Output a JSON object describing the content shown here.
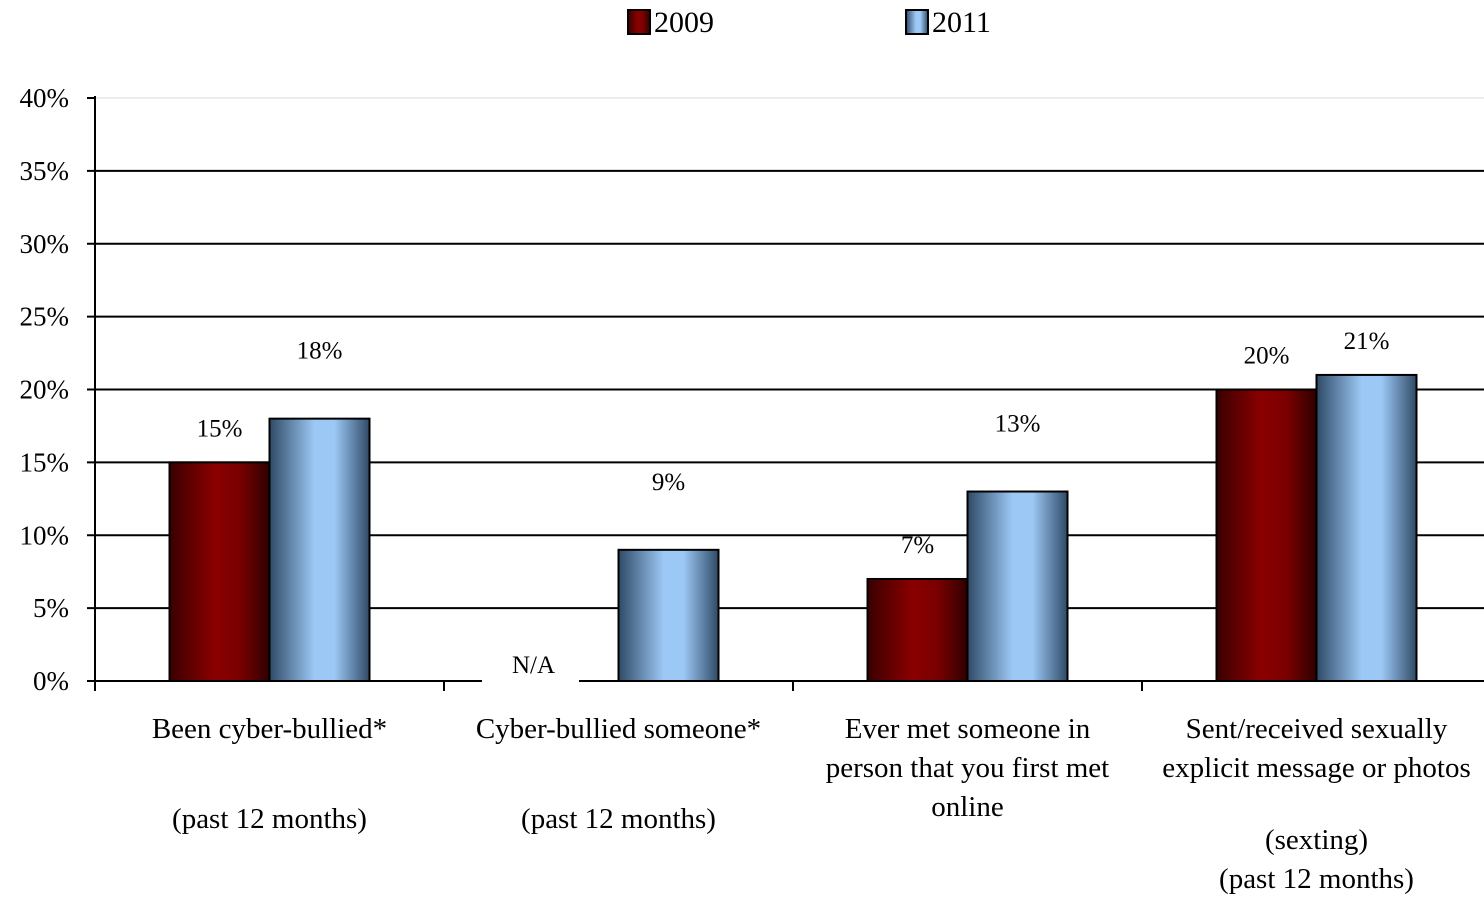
{
  "chart_data": {
    "type": "bar",
    "title": "",
    "xlabel": "",
    "ylabel": "",
    "ylim": [
      0,
      40
    ],
    "y_ticks": [
      "0%",
      "5%",
      "10%",
      "15%",
      "20%",
      "25%",
      "30%",
      "35%",
      "40%"
    ],
    "grid": true,
    "legend_position": "top",
    "categories": [
      {
        "label_lines": [
          "Been cyber-bullied*",
          "",
          "(past 12 months)"
        ]
      },
      {
        "label_lines": [
          "Cyber-bullied someone*",
          "",
          "(past 12 months)"
        ]
      },
      {
        "label_lines": [
          "Ever met someone in",
          "person that you first met",
          "online"
        ]
      },
      {
        "label_lines": [
          "Sent/received sexually",
          "explicit message or photos",
          "",
          "(sexting)",
          "(past 12 months)"
        ]
      }
    ],
    "series": [
      {
        "name": "2009",
        "color": "#7a0000",
        "values": [
          15,
          null,
          7,
          20
        ],
        "data_labels": [
          "15%",
          "N/A",
          "7%",
          "20%"
        ]
      },
      {
        "name": "2011",
        "color": "#8ab6e6",
        "values": [
          18,
          9,
          13,
          21
        ],
        "data_labels": [
          "18%",
          "9%",
          "13%",
          "21%"
        ]
      }
    ]
  }
}
